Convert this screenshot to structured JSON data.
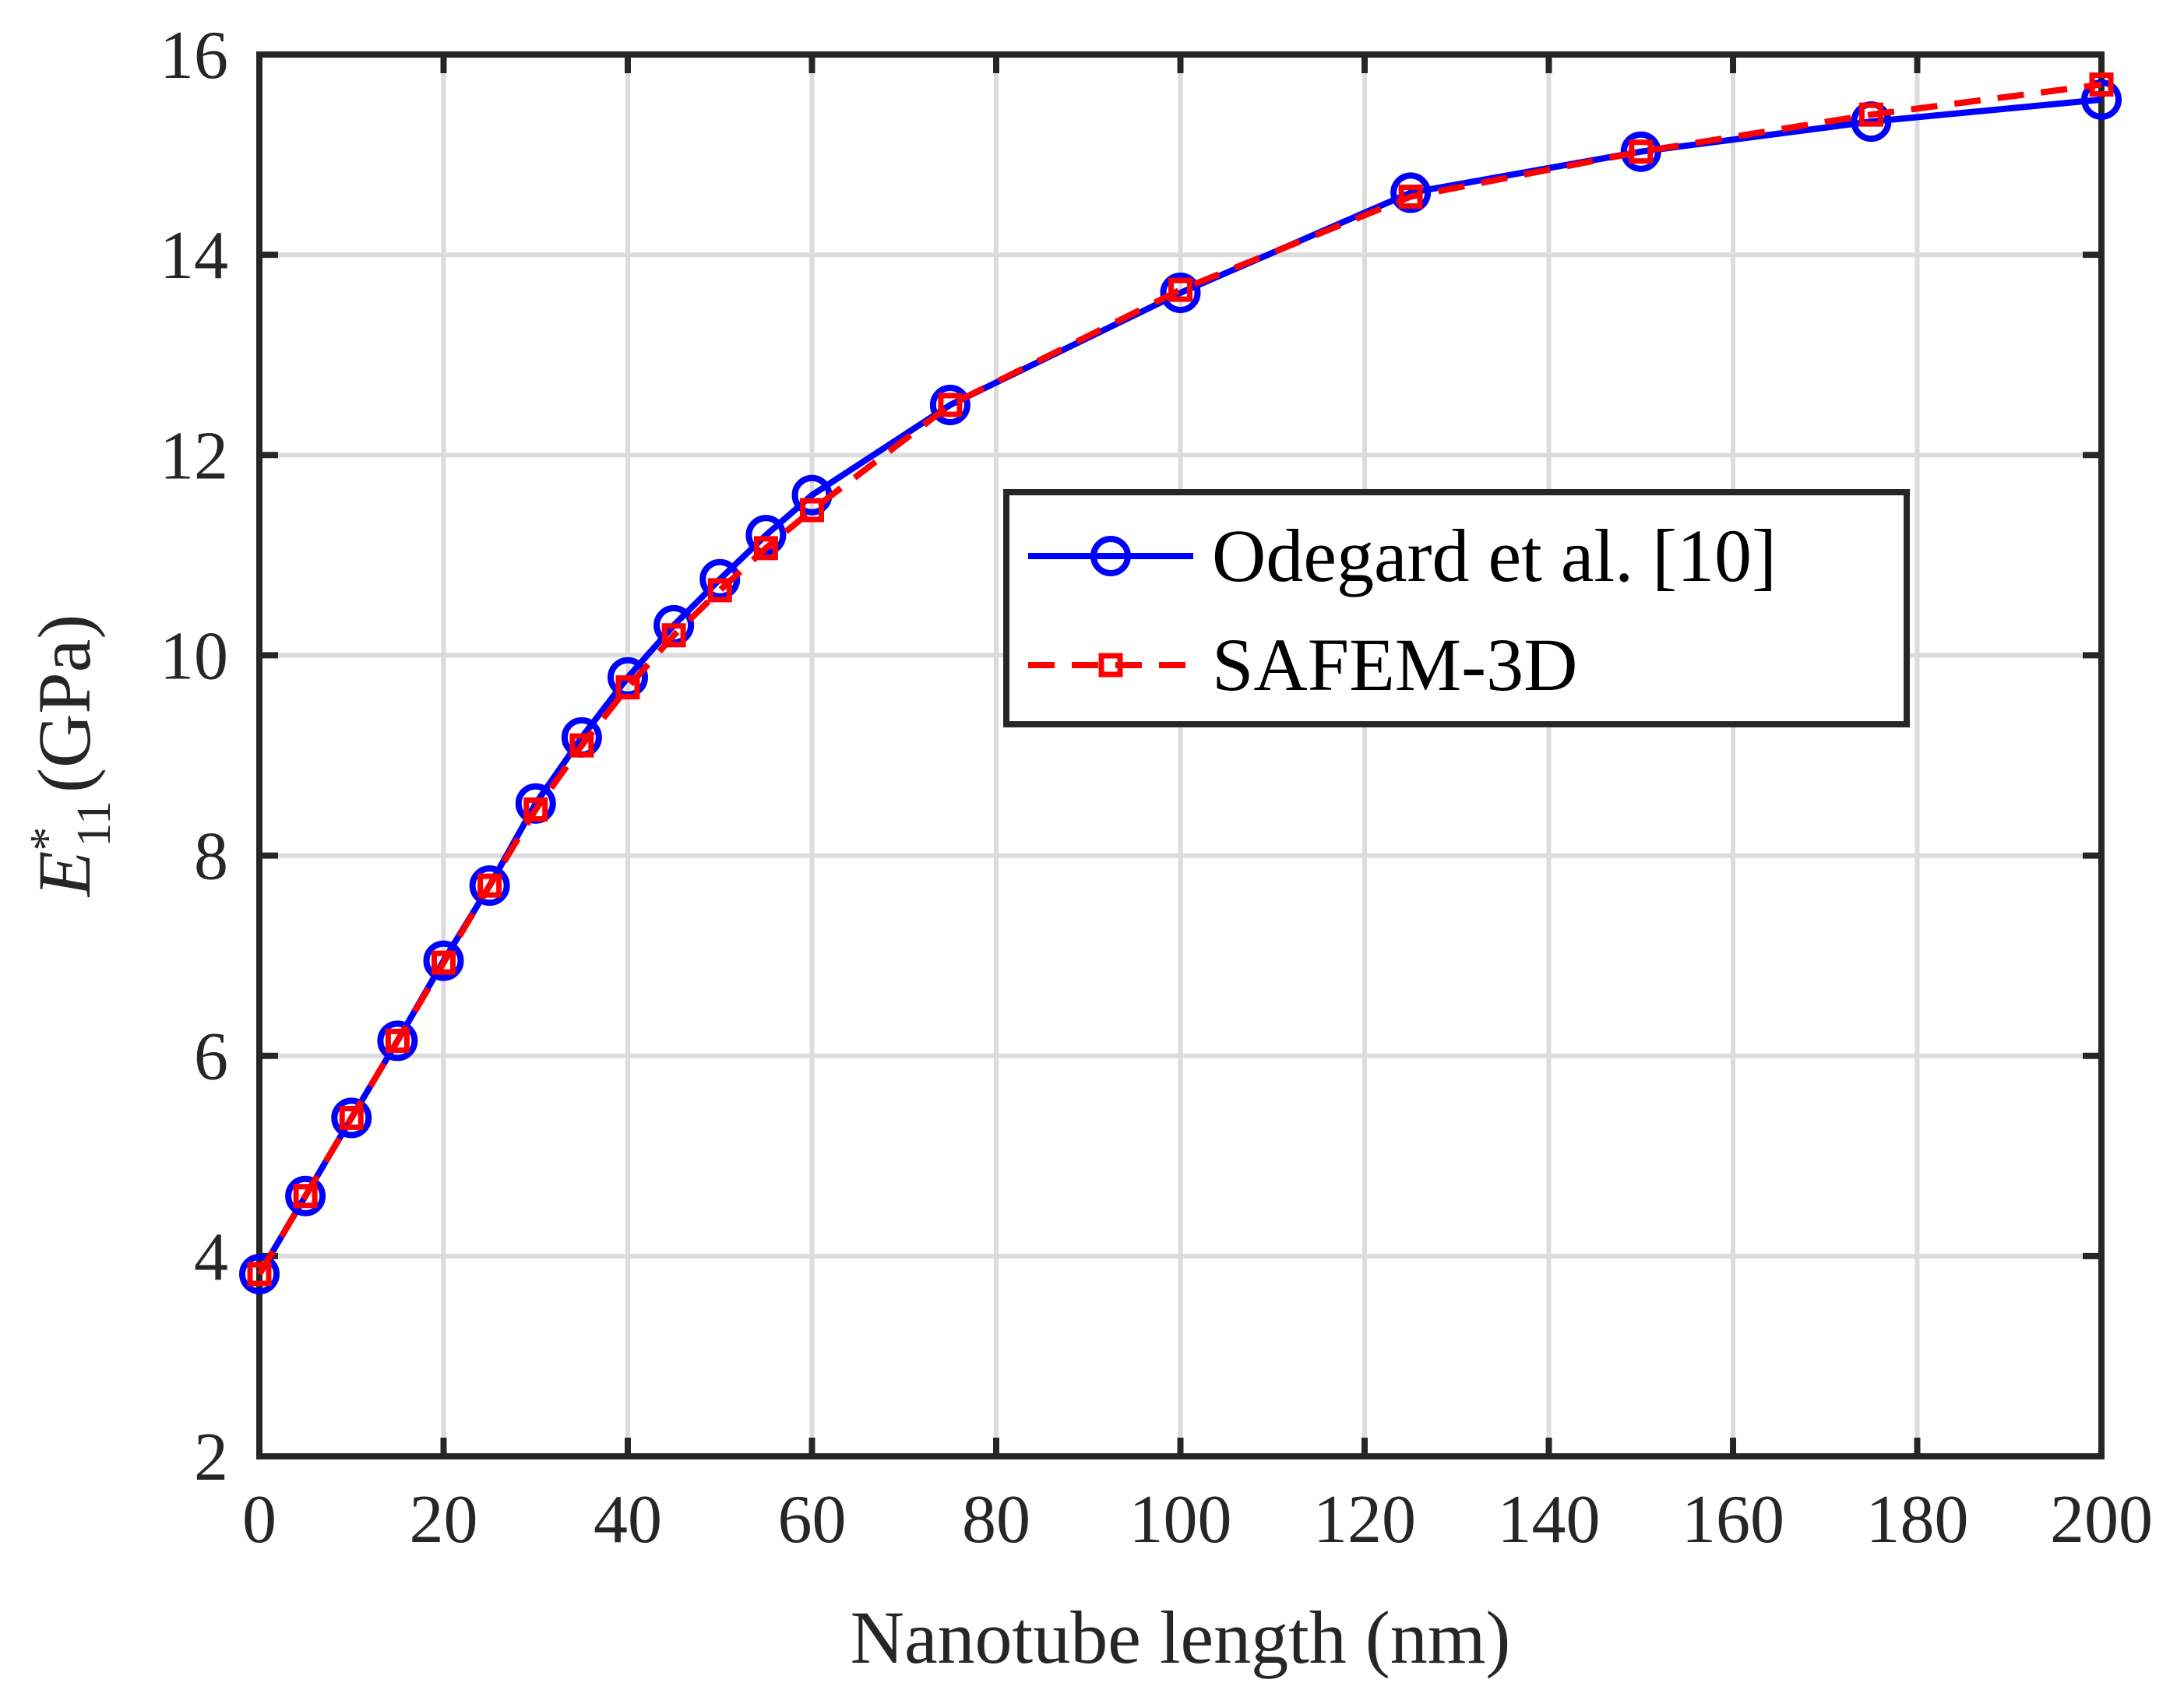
{
  "chart_data": {
    "type": "line",
    "xlabel": "Nanotube  length  (nm)",
    "ylabel": {
      "symbol": "E",
      "superscript": "*",
      "subscript": "11",
      "unit": "(GPa)"
    },
    "xlim": [
      0,
      200
    ],
    "ylim": [
      2,
      16
    ],
    "xticks": [
      "0",
      "20",
      "40",
      "60",
      "80",
      "100",
      "120",
      "140",
      "160",
      "180",
      "200"
    ],
    "yticks": [
      "2",
      "4",
      "6",
      "8",
      "10",
      "12",
      "14",
      "16"
    ],
    "grid": true,
    "legend_position": "center-right",
    "series": [
      {
        "name": "Odegard et al. [10]",
        "color": "#0000ff",
        "line_style": "solid",
        "marker": "circle",
        "x": [
          0,
          5,
          10,
          15,
          20,
          25,
          30,
          35,
          40,
          45,
          50,
          55,
          60,
          75,
          100,
          125,
          150,
          175,
          200
        ],
        "y": [
          3.82,
          4.6,
          5.38,
          6.15,
          6.95,
          7.7,
          8.52,
          9.18,
          9.78,
          10.3,
          10.76,
          11.2,
          11.6,
          12.5,
          13.62,
          14.62,
          15.03,
          15.33,
          15.55
        ]
      },
      {
        "name": "SAFEM-3D",
        "color": "#ff0000",
        "line_style": "dashed",
        "marker": "square",
        "x": [
          0,
          5,
          10,
          15,
          20,
          25,
          30,
          35,
          40,
          45,
          50,
          55,
          60,
          75,
          100,
          125,
          150,
          175,
          200
        ],
        "y": [
          3.82,
          4.6,
          5.38,
          6.15,
          6.93,
          7.7,
          8.46,
          9.1,
          9.68,
          10.2,
          10.65,
          11.07,
          11.45,
          12.5,
          13.65,
          14.58,
          15.03,
          15.4,
          15.7
        ]
      }
    ]
  }
}
